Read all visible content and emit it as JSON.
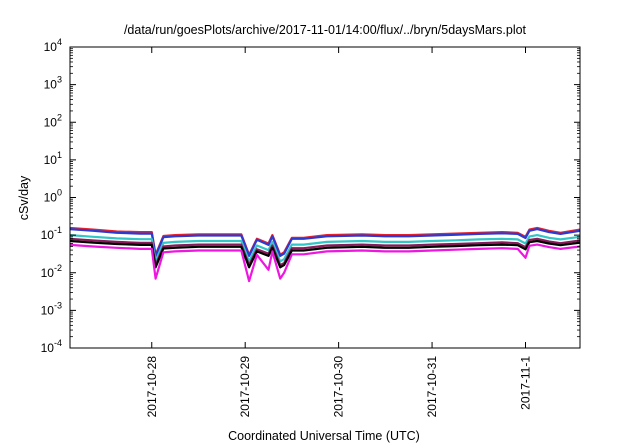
{
  "chart_data": {
    "type": "line",
    "title": "/data/run/goesPlots/archive/2017-11-01/14:00/flux/../bryn/5daysMars.plot",
    "xlabel": "Coordinated Universal Time (UTC)",
    "ylabel": "cSv/day",
    "xlim": [
      "2017-10-27T03:00",
      "2017-11-01T14:00"
    ],
    "ylim": [
      0.0001,
      10000
    ],
    "y_scale": "log",
    "grid": false,
    "x_ticks": [
      {
        "label": "2017-10-28",
        "value": "2017-10-28T00:00"
      },
      {
        "label": "2017-10-29",
        "value": "2017-10-29T00:00"
      },
      {
        "label": "2017-10-30",
        "value": "2017-10-30T00:00"
      },
      {
        "label": "2017-10-31",
        "value": "2017-10-31T00:00"
      },
      {
        "label": "2017-11-1",
        "value": "2017-11-01T00:00"
      }
    ],
    "y_ticks": [
      {
        "base": "10",
        "exp": "4",
        "value": 10000
      },
      {
        "base": "10",
        "exp": "3",
        "value": 1000
      },
      {
        "base": "10",
        "exp": "2",
        "value": 100
      },
      {
        "base": "10",
        "exp": "1",
        "value": 10
      },
      {
        "base": "10",
        "exp": "0",
        "value": 1
      },
      {
        "base": "10",
        "exp": "-1",
        "value": 0.1
      },
      {
        "base": "10",
        "exp": "-2",
        "value": 0.01
      },
      {
        "base": "10",
        "exp": "-3",
        "value": 0.001
      },
      {
        "base": "10",
        "exp": "-4",
        "value": 0.0001
      }
    ],
    "x": [
      "2017-10-27T03:00",
      "2017-10-27T09:00",
      "2017-10-27T15:00",
      "2017-10-27T21:00",
      "2017-10-28T00:00",
      "2017-10-28T01:00",
      "2017-10-28T03:00",
      "2017-10-28T06:00",
      "2017-10-28T12:00",
      "2017-10-28T18:00",
      "2017-10-28T23:00",
      "2017-10-29T01:00",
      "2017-10-29T03:00",
      "2017-10-29T06:00",
      "2017-10-29T07:00",
      "2017-10-29T09:00",
      "2017-10-29T10:00",
      "2017-10-29T12:00",
      "2017-10-29T15:00",
      "2017-10-29T21:00",
      "2017-10-30T06:00",
      "2017-10-30T12:00",
      "2017-10-30T18:00",
      "2017-10-31T00:00",
      "2017-10-31T06:00",
      "2017-10-31T12:00",
      "2017-10-31T18:00",
      "2017-10-31T22:00",
      "2017-11-01T00:00",
      "2017-11-01T01:00",
      "2017-11-01T03:00",
      "2017-11-01T06:00",
      "2017-11-01T09:00",
      "2017-11-01T14:00"
    ],
    "series": [
      {
        "color": "#e4212d",
        "values": [
          0.155,
          0.14,
          0.125,
          0.12,
          0.12,
          0.03,
          0.095,
          0.1,
          0.105,
          0.105,
          0.105,
          0.03,
          0.08,
          0.06,
          0.1,
          0.03,
          0.035,
          0.085,
          0.085,
          0.1,
          0.105,
          0.1,
          0.1,
          0.105,
          0.11,
          0.115,
          0.12,
          0.115,
          0.09,
          0.14,
          0.155,
          0.13,
          0.115,
          0.14
        ]
      },
      {
        "color": "#2a3bd2",
        "values": [
          0.145,
          0.13,
          0.115,
          0.11,
          0.11,
          0.028,
          0.088,
          0.093,
          0.098,
          0.098,
          0.098,
          0.028,
          0.075,
          0.055,
          0.093,
          0.028,
          0.032,
          0.08,
          0.08,
          0.093,
          0.098,
          0.093,
          0.093,
          0.098,
          0.102,
          0.108,
          0.112,
          0.108,
          0.084,
          0.13,
          0.145,
          0.12,
          0.108,
          0.13
        ]
      },
      {
        "color": "#33c6c6",
        "values": [
          0.1,
          0.09,
          0.082,
          0.078,
          0.078,
          0.02,
          0.062,
          0.066,
          0.07,
          0.07,
          0.07,
          0.02,
          0.053,
          0.04,
          0.066,
          0.02,
          0.023,
          0.056,
          0.056,
          0.066,
          0.07,
          0.066,
          0.066,
          0.07,
          0.073,
          0.077,
          0.08,
          0.077,
          0.06,
          0.092,
          0.1,
          0.085,
          0.077,
          0.09
        ]
      },
      {
        "color": "#8a1a5a",
        "values": [
          0.08,
          0.072,
          0.066,
          0.062,
          0.062,
          0.016,
          0.05,
          0.053,
          0.056,
          0.056,
          0.056,
          0.016,
          0.042,
          0.032,
          0.053,
          0.016,
          0.018,
          0.045,
          0.045,
          0.053,
          0.056,
          0.053,
          0.053,
          0.056,
          0.058,
          0.061,
          0.064,
          0.061,
          0.048,
          0.074,
          0.08,
          0.068,
          0.061,
          0.072
        ]
      },
      {
        "color": "#000000",
        "values": [
          0.07,
          0.063,
          0.058,
          0.055,
          0.055,
          0.014,
          0.044,
          0.046,
          0.049,
          0.049,
          0.049,
          0.014,
          0.037,
          0.028,
          0.046,
          0.014,
          0.016,
          0.039,
          0.039,
          0.046,
          0.049,
          0.046,
          0.046,
          0.049,
          0.051,
          0.054,
          0.056,
          0.054,
          0.042,
          0.065,
          0.07,
          0.06,
          0.054,
          0.063
        ]
      },
      {
        "color": "#ee17e0",
        "values": [
          0.055,
          0.05,
          0.046,
          0.043,
          0.043,
          0.007,
          0.035,
          0.037,
          0.039,
          0.039,
          0.039,
          0.006,
          0.03,
          0.012,
          0.037,
          0.007,
          0.01,
          0.031,
          0.031,
          0.037,
          0.039,
          0.037,
          0.037,
          0.039,
          0.041,
          0.043,
          0.045,
          0.043,
          0.025,
          0.052,
          0.056,
          0.048,
          0.043,
          0.05
        ]
      }
    ]
  }
}
